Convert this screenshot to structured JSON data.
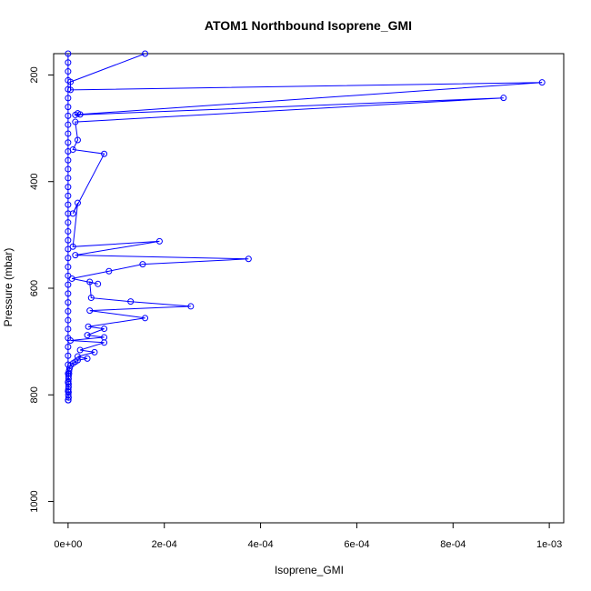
{
  "chart_data": {
    "type": "line",
    "title": "ATOM1 Northbound Isoprene_GMI",
    "xlabel": "Isoprene_GMI",
    "ylabel": "Pressure (mbar)",
    "xlim": [
      -3e-05,
      0.00103
    ],
    "ylim_reversed": [
      1040,
      160
    ],
    "x_ticks": [
      0,
      0.0002,
      0.0004,
      0.0006,
      0.0008,
      0.001
    ],
    "x_tick_labels": [
      "0e+00",
      "2e-04",
      "4e-04",
      "6e-04",
      "8e-04",
      "1e-03"
    ],
    "y_ticks": [
      200,
      400,
      600,
      800,
      1000
    ],
    "y_tick_labels": [
      "200",
      "400",
      "600",
      "800",
      "1000"
    ],
    "grid": false,
    "marker": "open-circle",
    "color": "#0000ff",
    "series": [
      {
        "values": [
          [
            5e-07,
            810
          ],
          [
            1e-06,
            805
          ],
          [
            5e-07,
            800
          ],
          [
            1e-06,
            795
          ],
          [
            5e-07,
            790
          ],
          [
            1e-06,
            785
          ],
          [
            1e-06,
            780
          ],
          [
            5e-07,
            775
          ],
          [
            1e-06,
            770
          ],
          [
            1e-06,
            765
          ],
          [
            2e-06,
            760
          ],
          [
            2e-06,
            755
          ],
          [
            3e-06,
            750
          ],
          [
            5e-06,
            745
          ],
          [
            1e-05,
            741
          ],
          [
            1.5e-05,
            738
          ],
          [
            2e-05,
            735
          ],
          [
            4e-05,
            732
          ],
          [
            2e-05,
            728
          ],
          [
            5.5e-05,
            720
          ],
          [
            2.5e-05,
            716
          ],
          [
            7.5e-05,
            702
          ],
          [
            5e-06,
            698
          ],
          [
            7.5e-05,
            692
          ],
          [
            4e-05,
            688
          ],
          [
            7.5e-05,
            676
          ],
          [
            4.2e-05,
            672
          ],
          [
            0.00016,
            656
          ],
          [
            4.5e-05,
            642
          ],
          [
            0.000255,
            634
          ],
          [
            0.00013,
            625
          ],
          [
            4.8e-05,
            618
          ],
          [
            4.5e-05,
            588
          ],
          [
            6.2e-05,
            592
          ],
          [
            8e-06,
            582
          ],
          [
            8.5e-05,
            568
          ],
          [
            0.000155,
            555
          ],
          [
            0.000375,
            545
          ],
          [
            1.5e-05,
            538
          ],
          [
            0.00019,
            512
          ],
          [
            1e-05,
            522
          ],
          [
            2e-05,
            440
          ],
          [
            1e-05,
            460
          ],
          [
            7.5e-05,
            348
          ],
          [
            1e-05,
            340
          ],
          [
            2e-05,
            322
          ],
          [
            1.5e-05,
            288
          ],
          [
            0.000905,
            243
          ],
          [
            1.5e-05,
            275
          ],
          [
            2e-05,
            272
          ],
          [
            2.5e-05,
            274
          ],
          [
            0.000985,
            214
          ],
          [
            5e-06,
            228
          ],
          [
            5e-06,
            213
          ],
          [
            0.00016,
            160
          ]
        ]
      }
    ],
    "column_values": [
      0,
      0,
      0,
      0,
      0,
      0,
      0,
      0,
      0,
      0,
      0,
      0,
      0,
      0,
      0,
      0,
      0,
      0,
      0,
      0,
      0,
      0,
      0,
      0,
      0,
      0,
      0,
      0,
      0,
      0,
      0,
      0,
      0,
      0,
      0,
      0,
      0,
      0,
      0,
      0
    ]
  }
}
